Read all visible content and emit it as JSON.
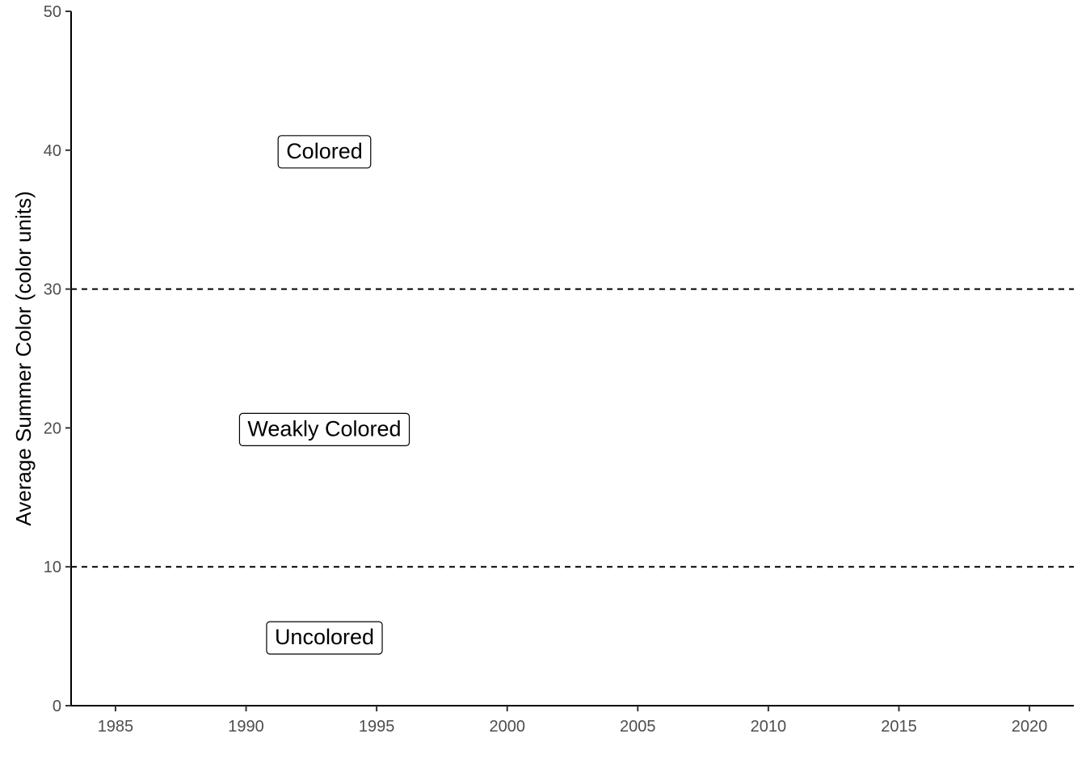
{
  "chart_data": {
    "type": "line",
    "title": "",
    "xlabel": "",
    "ylabel": "Average Summer Color (color units)",
    "xlim": [
      1983.3,
      2021.7
    ],
    "ylim": [
      0,
      50
    ],
    "x_ticks": [
      1985,
      1990,
      1995,
      2000,
      2005,
      2010,
      2015,
      2020
    ],
    "x_tick_labels": [
      "1985",
      "1990",
      "1995",
      "2000",
      "2005",
      "2010",
      "2015",
      "2020"
    ],
    "y_ticks": [
      0,
      10,
      20,
      30,
      40,
      50
    ],
    "y_tick_labels": [
      "0",
      "10",
      "20",
      "30",
      "40",
      "50"
    ],
    "grid": false,
    "reference_lines": [
      {
        "y": 10,
        "style": "dashed"
      },
      {
        "y": 30,
        "style": "dashed"
      }
    ],
    "annotations": [
      {
        "text": "Colored",
        "x": 1993,
        "y": 40
      },
      {
        "text": "Weakly Colored",
        "x": 1993,
        "y": 20
      },
      {
        "text": "Uncolored",
        "x": 1993,
        "y": 5
      }
    ],
    "series": []
  }
}
